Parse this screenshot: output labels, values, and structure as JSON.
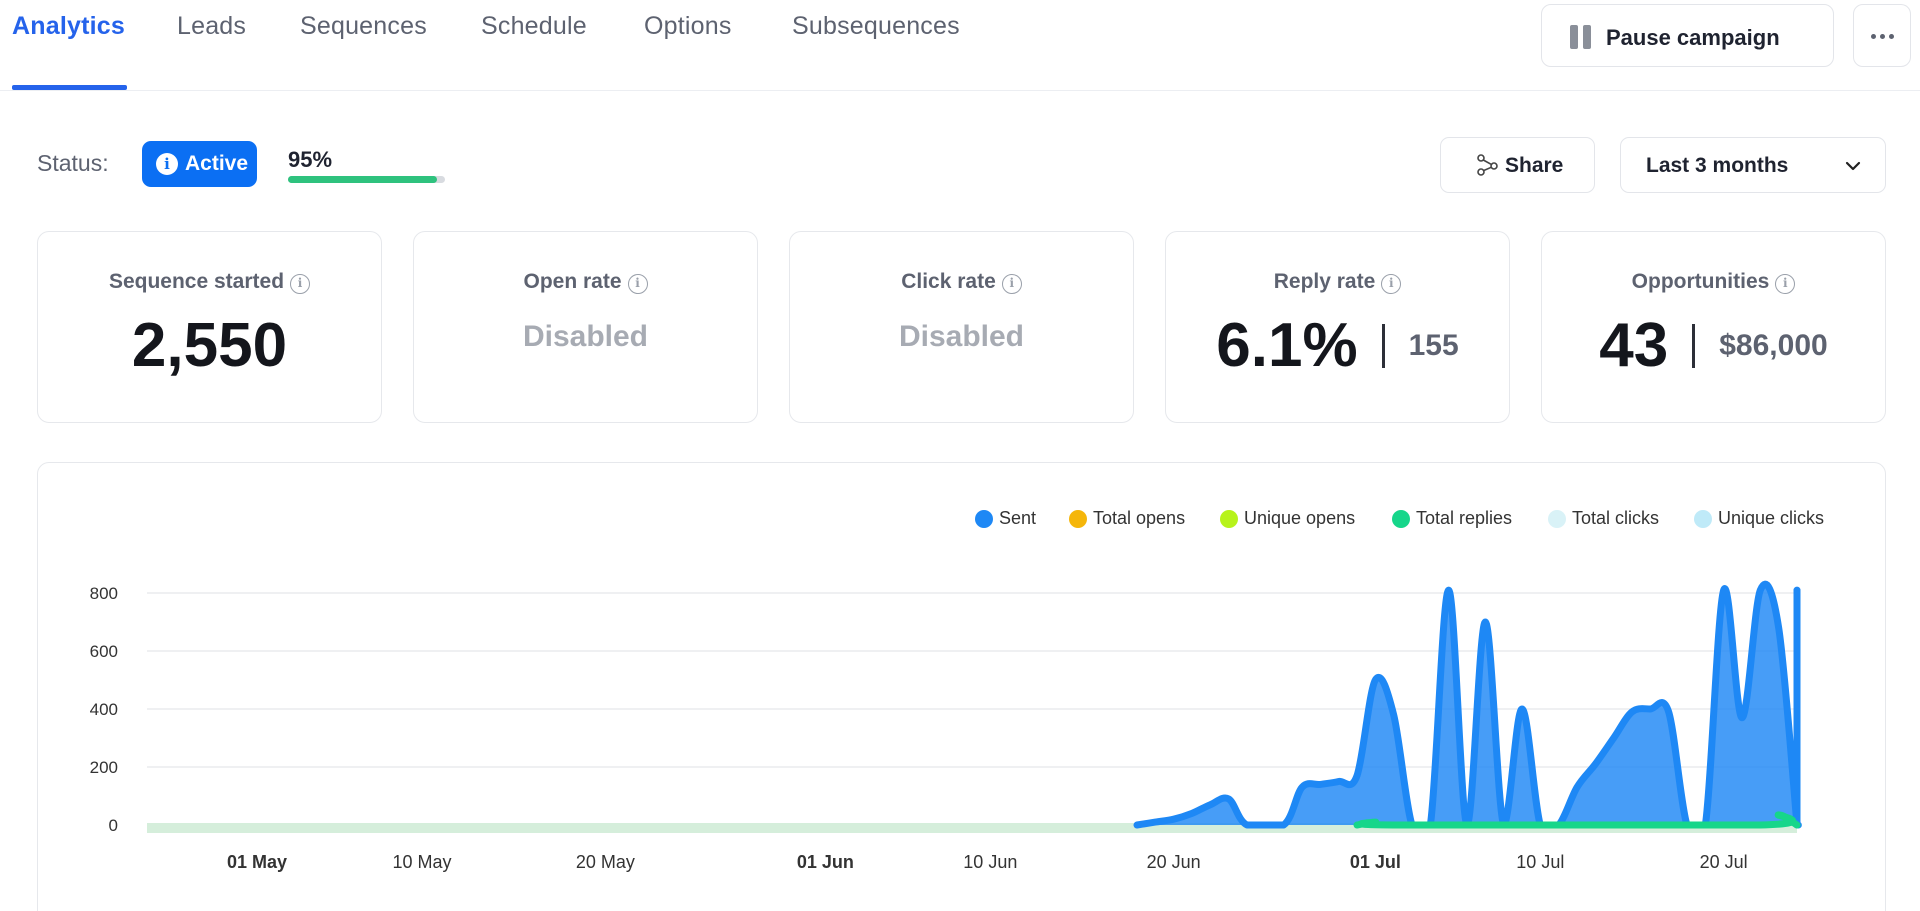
{
  "tabs": [
    {
      "label": "Analytics",
      "active": true
    },
    {
      "label": "Leads"
    },
    {
      "label": "Sequences"
    },
    {
      "label": "Schedule"
    },
    {
      "label": "Options"
    },
    {
      "label": "Subsequences"
    }
  ],
  "header": {
    "pause_label": "Pause campaign",
    "pause_icon": "pause-icon",
    "more_icon": "more-icon"
  },
  "status": {
    "label": "Status:",
    "badge": "Active",
    "progress_text": "95%",
    "progress": 0.95,
    "progress_color": "#2ec27e",
    "badge_color": "#0b6ff3"
  },
  "toolbar": {
    "share_label": "Share",
    "range_value": "Last 3 months"
  },
  "cards": [
    {
      "title": "Sequence started",
      "value": "2,550"
    },
    {
      "title": "Open rate",
      "value": "Disabled"
    },
    {
      "title": "Click rate",
      "value": "Disabled"
    },
    {
      "title": "Reply rate",
      "value": "6.1%",
      "secondary": "155"
    },
    {
      "title": "Opportunities",
      "value": "43",
      "secondary": "$86,000"
    }
  ],
  "chart_data": {
    "type": "area",
    "legend_placement": "top-right",
    "grid": true,
    "ylim": [
      0,
      800
    ],
    "y_ticks": [
      "0",
      "200",
      "400",
      "600",
      "800"
    ],
    "x_ticks": [
      {
        "label": "01 May",
        "bold": true
      },
      {
        "label": "10 May",
        "bold": false
      },
      {
        "label": "20 May",
        "bold": false
      },
      {
        "label": "01 Jun",
        "bold": true
      },
      {
        "label": "10 Jun",
        "bold": false
      },
      {
        "label": "20 Jun",
        "bold": false
      },
      {
        "label": "01 Jul",
        "bold": true
      },
      {
        "label": "10 Jul",
        "bold": false
      },
      {
        "label": "20 Jul",
        "bold": false
      }
    ],
    "x_range": [
      "2024-04-25",
      "2024-07-24"
    ],
    "series": [
      {
        "name": "Sent",
        "color": "#1e88f5",
        "points": [
          [
            "2024-06-18",
            0
          ],
          [
            "2024-06-19",
            10
          ],
          [
            "2024-06-20",
            20
          ],
          [
            "2024-06-21",
            40
          ],
          [
            "2024-06-22",
            70
          ],
          [
            "2024-06-23",
            90
          ],
          [
            "2024-06-24",
            0
          ],
          [
            "2024-06-26",
            0
          ],
          [
            "2024-06-27",
            130
          ],
          [
            "2024-06-28",
            140
          ],
          [
            "2024-06-29",
            150
          ],
          [
            "2024-06-30",
            170
          ],
          [
            "2024-07-01",
            500
          ],
          [
            "2024-07-02",
            380
          ],
          [
            "2024-07-03",
            0
          ],
          [
            "2024-07-04",
            0
          ],
          [
            "2024-07-05",
            810
          ],
          [
            "2024-07-06",
            0
          ],
          [
            "2024-07-07",
            700
          ],
          [
            "2024-07-08",
            0
          ],
          [
            "2024-07-09",
            400
          ],
          [
            "2024-07-10",
            0
          ],
          [
            "2024-07-11",
            0
          ],
          [
            "2024-07-12",
            130
          ],
          [
            "2024-07-13",
            210
          ],
          [
            "2024-07-14",
            300
          ],
          [
            "2024-07-15",
            390
          ],
          [
            "2024-07-16",
            400
          ],
          [
            "2024-07-17",
            390
          ],
          [
            "2024-07-18",
            0
          ],
          [
            "2024-07-19",
            0
          ],
          [
            "2024-07-20",
            810
          ],
          [
            "2024-07-21",
            370
          ],
          [
            "2024-07-22",
            810
          ],
          [
            "2024-07-23",
            680
          ],
          [
            "2024-07-24",
            0
          ],
          [
            "2024-07-25",
            0
          ],
          [
            "2024-07-26",
            810
          ],
          [
            "2024-07-27",
            0
          ],
          [
            "2024-07-28",
            650
          ]
        ]
      },
      {
        "name": "Total opens",
        "color": "#f5b60a",
        "points": []
      },
      {
        "name": "Unique opens",
        "color": "#b7f31b",
        "points": []
      },
      {
        "name": "Total replies",
        "color": "#16d68a",
        "points": [
          [
            "2024-06-30",
            0
          ],
          [
            "2024-07-01",
            10
          ],
          [
            "2024-07-02",
            0
          ],
          [
            "2024-07-22",
            0
          ],
          [
            "2024-07-23",
            35
          ],
          [
            "2024-07-24",
            0
          ]
        ]
      },
      {
        "name": "Total clicks",
        "color": "#d9f2f7",
        "points": []
      },
      {
        "name": "Unique clicks",
        "color": "#bfeaf8",
        "points": []
      }
    ]
  }
}
